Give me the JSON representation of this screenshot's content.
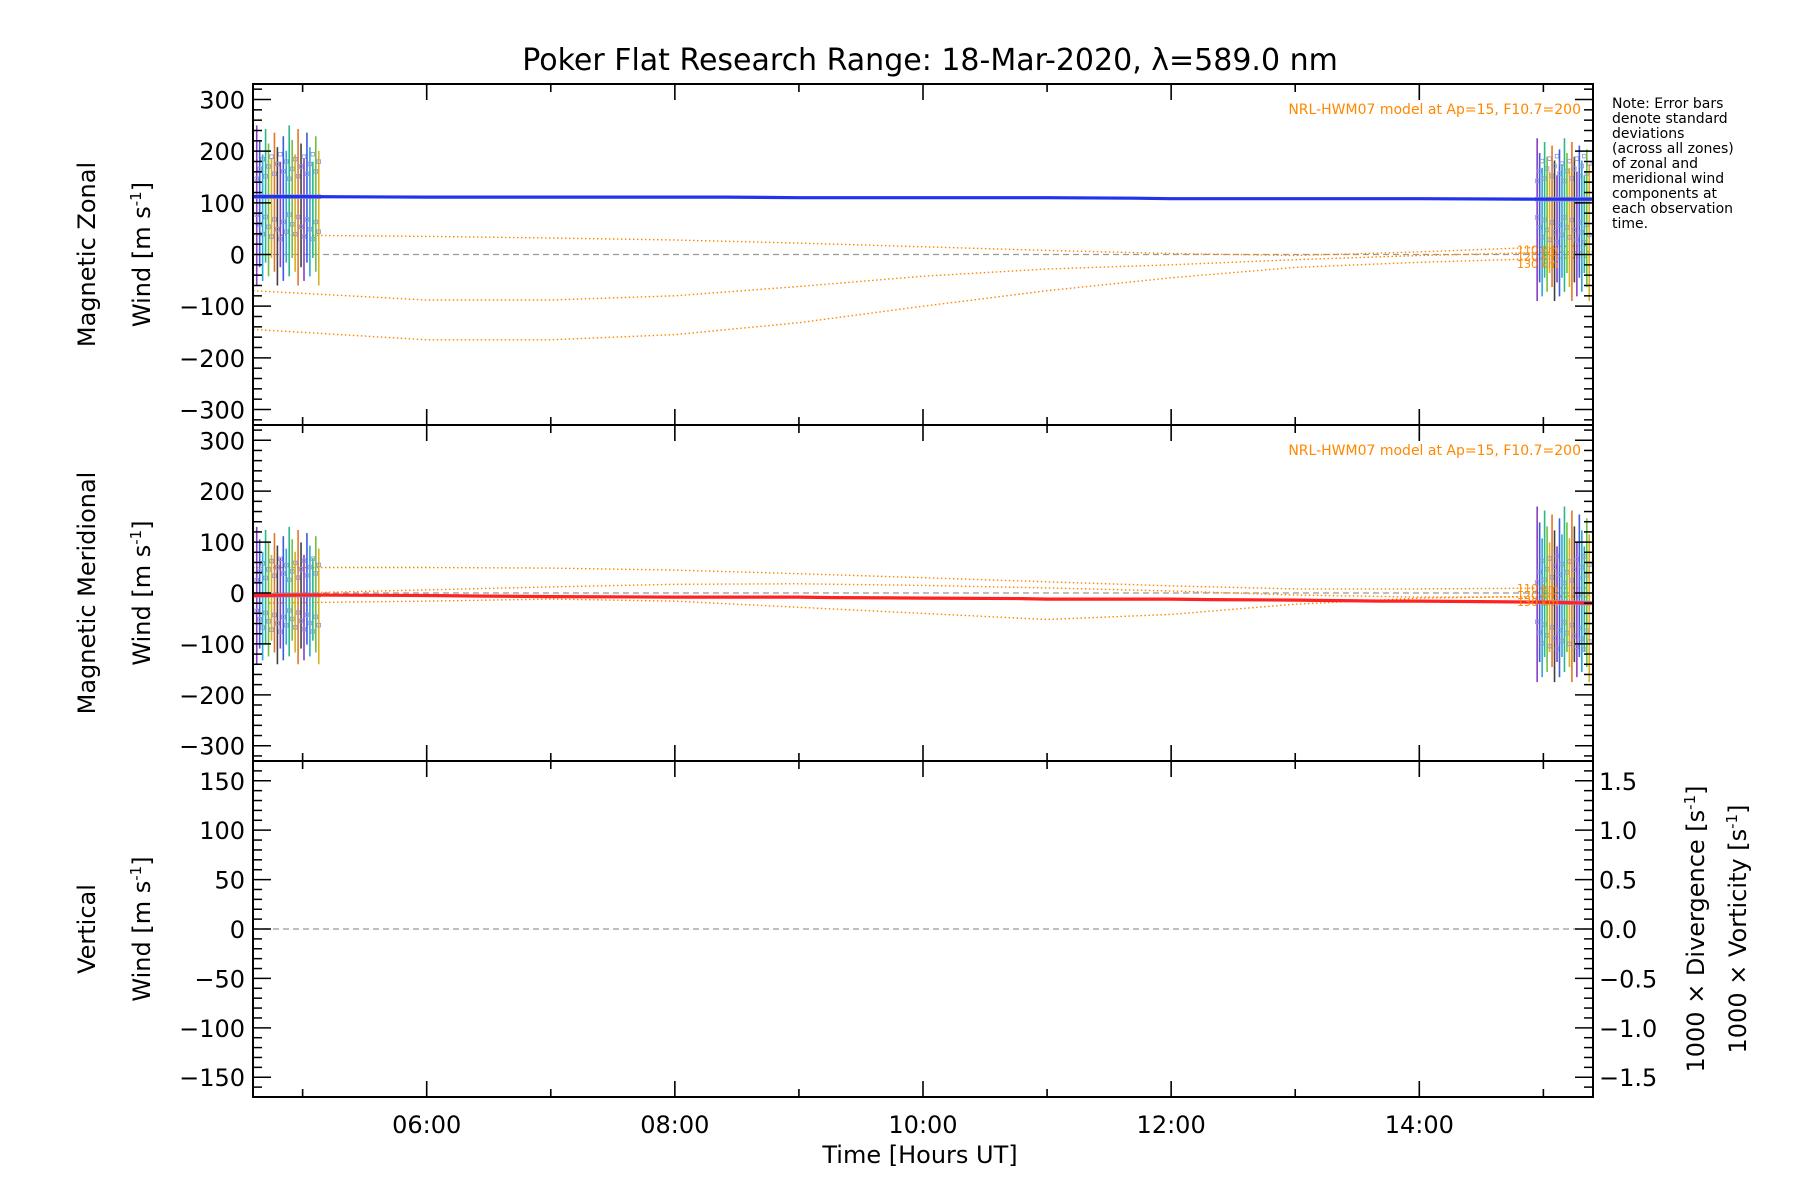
{
  "title": "Poker Flat Research Range: 18-Mar-2020, λ=589.0 nm",
  "note_lines": [
    "Note: Error bars",
    "denote standard",
    "deviations",
    "(across all zones)",
    "of zonal and",
    "meridional wind",
    "components at",
    "each observation",
    "time."
  ],
  "x_axis": {
    "label": "Time [Hours UT]",
    "range": [
      4.6,
      15.4
    ],
    "ticks": [
      {
        "value": 6,
        "label": "06:00"
      },
      {
        "value": 8,
        "label": "08:00"
      },
      {
        "value": 10,
        "label": "10:00"
      },
      {
        "value": 12,
        "label": "12:00"
      },
      {
        "value": 14,
        "label": "14:00"
      }
    ]
  },
  "colors": {
    "zonal": "#2233ee",
    "meridional": "#ff2222",
    "model": "#ff8800",
    "zone_points": "#9999dd",
    "vertical_label": "#7bbd2e",
    "divergence_label": "#33aadd",
    "vorticity_label": "#ff4488",
    "zero_line": "#999999"
  },
  "chart_data": [
    {
      "type": "line",
      "panel": "zonal",
      "ylabel_line1": "Magnetic Zonal",
      "ylabel_line2": "Wind [m s",
      "ylabel_sup": "-1",
      "ylabel_close": "]",
      "ylim": [
        -330,
        330
      ],
      "yticks": [
        -300,
        -200,
        -100,
        0,
        100,
        200,
        300
      ],
      "ytick_labels": [
        "−300",
        "−200",
        "−100",
        "0",
        "100",
        "200",
        "300"
      ],
      "model_label": "NRL-HWM07 model at Ap=15, F10.7=200",
      "model_altitude_labels": [
        "110 km",
        "120 km",
        "130 km"
      ],
      "series": [
        {
          "role": "measured",
          "x": [
            4.6,
            5.0,
            6.0,
            7.0,
            8.0,
            8.4,
            9.0,
            10.0,
            11.0,
            11.7,
            12.0,
            13.0,
            14.0,
            15.0,
            15.4
          ],
          "y": [
            112,
            112,
            111,
            111,
            111,
            111,
            110,
            110,
            110,
            109,
            108,
            108,
            108,
            107,
            107
          ]
        },
        {
          "role": "model",
          "x": [
            4.6,
            6.0,
            7.0,
            8.0,
            9.0,
            10.0,
            11.0,
            12.0,
            13.0,
            14.0,
            15.4
          ],
          "y": [
            38,
            35,
            32,
            28,
            22,
            15,
            8,
            2,
            -2,
            5,
            18
          ]
        },
        {
          "role": "model",
          "x": [
            4.6,
            6.0,
            7.0,
            8.0,
            9.0,
            10.0,
            11.0,
            12.0,
            13.0,
            14.0,
            15.4
          ],
          "y": [
            -70,
            -88,
            -88,
            -80,
            -62,
            -42,
            -28,
            -20,
            -10,
            -2,
            6
          ]
        },
        {
          "role": "model",
          "x": [
            4.6,
            6.0,
            7.0,
            8.0,
            9.0,
            10.0,
            11.0,
            12.0,
            13.0,
            14.0,
            15.4
          ],
          "y": [
            -145,
            -165,
            -165,
            -155,
            -132,
            -100,
            -70,
            -45,
            -25,
            -15,
            -5
          ]
        }
      ],
      "error_groups": [
        {
          "x_start": 4.63,
          "x_end": 5.13,
          "y_low": -60,
          "y_high": 250
        },
        {
          "x_start": 14.95,
          "x_end": 15.37,
          "y_low": -90,
          "y_high": 225
        }
      ]
    },
    {
      "type": "line",
      "panel": "meridional",
      "ylabel_line1": "Magnetic Meridional",
      "ylabel_line2": "Wind [m s",
      "ylabel_sup": "-1",
      "ylabel_close": "]",
      "ylim": [
        -330,
        330
      ],
      "yticks": [
        -300,
        -200,
        -100,
        0,
        100,
        200,
        300
      ],
      "ytick_labels": [
        "−300",
        "−200",
        "−100",
        "0",
        "100",
        "200",
        "300"
      ],
      "model_label": "NRL-HWM07 model at Ap=15, F10.7=200",
      "model_altitude_labels": [
        "110 km",
        "120 km",
        "130 km"
      ],
      "series": [
        {
          "role": "measured",
          "x": [
            4.6,
            5.0,
            6.0,
            6.5,
            7.0,
            8.0,
            9.0,
            9.3,
            10.0,
            10.8,
            11.0,
            12.0,
            12.3,
            13.0,
            13.7,
            14.0,
            15.0,
            15.4
          ],
          "y": [
            -5,
            -4,
            -5,
            -6,
            -7,
            -8,
            -8,
            -9,
            -10,
            -11,
            -12,
            -12,
            -13,
            -14,
            -16,
            -16,
            -18,
            -20
          ]
        },
        {
          "role": "model",
          "x": [
            4.6,
            6.0,
            7.0,
            8.0,
            9.0,
            10.0,
            11.0,
            12.0,
            13.0,
            14.0,
            15.4
          ],
          "y": [
            50,
            50,
            49,
            45,
            38,
            30,
            22,
            14,
            8,
            8,
            10
          ]
        },
        {
          "role": "model",
          "x": [
            4.6,
            6.0,
            7.0,
            8.0,
            9.0,
            10.0,
            11.0,
            12.0,
            13.0,
            14.0,
            15.4
          ],
          "y": [
            -2,
            6,
            12,
            17,
            18,
            15,
            10,
            4,
            -4,
            -8,
            -8
          ]
        },
        {
          "role": "model",
          "x": [
            4.6,
            6.0,
            7.0,
            8.0,
            9.0,
            10.0,
            11.0,
            12.0,
            13.0,
            14.0,
            15.4
          ],
          "y": [
            -20,
            -16,
            -12,
            -16,
            -28,
            -40,
            -52,
            -42,
            -22,
            -10,
            -5
          ]
        }
      ],
      "error_groups": [
        {
          "x_start": 4.63,
          "x_end": 5.13,
          "y_low": -140,
          "y_high": 130
        },
        {
          "x_start": 14.95,
          "x_end": 15.37,
          "y_low": -175,
          "y_high": 170
        }
      ]
    },
    {
      "type": "line",
      "panel": "vertical",
      "ylabel_line1": "Vertical",
      "ylabel_line2": "Wind [m s",
      "ylabel_sup": "-1",
      "ylabel_close": "]",
      "ylim": [
        -170,
        170
      ],
      "yticks": [
        -150,
        -100,
        -50,
        0,
        50,
        100,
        150
      ],
      "ytick_labels": [
        "−150",
        "−100",
        "−50",
        "0",
        "50",
        "100",
        "150"
      ],
      "y2lim": [
        -1.7,
        1.7
      ],
      "y2ticks": [
        -1.5,
        -1.0,
        -0.5,
        0.0,
        0.5,
        1.0,
        1.5
      ],
      "y2tick_labels": [
        "−1.5",
        "−1.0",
        "−0.5",
        "0.0",
        "0.5",
        "1.0",
        "1.5"
      ],
      "y2label_div": "1000 × Divergence [s",
      "y2label_vort": "1000 × Vorticity [s",
      "y2label_sup": "-1",
      "y2label_close": "]",
      "series": []
    }
  ]
}
